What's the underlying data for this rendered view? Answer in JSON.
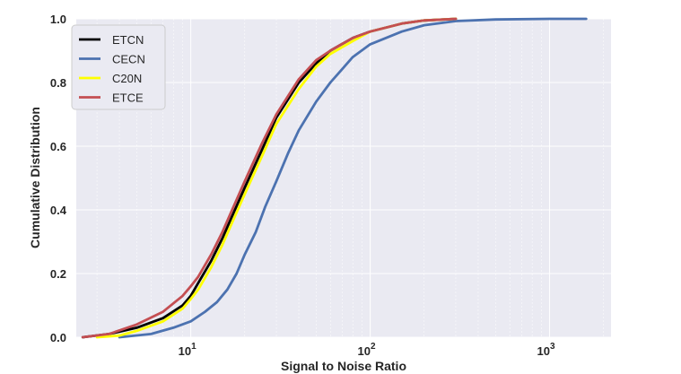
{
  "chart_data": {
    "type": "line",
    "title": "",
    "xlabel": "Signal to Noise Ratio",
    "ylabel": "Cumulative Distribution",
    "xscale": "log",
    "xlim": [
      2.3,
      2200
    ],
    "ylim": [
      0,
      1.0
    ],
    "grid": true,
    "legend_position": "top-left",
    "y_ticks": [
      "0.0",
      "0.2",
      "0.4",
      "0.6",
      "0.8",
      "1.0"
    ],
    "x_ticks": [
      {
        "value": 10,
        "base": "10",
        "exp": "1"
      },
      {
        "value": 100,
        "base": "10",
        "exp": "2"
      },
      {
        "value": 1000,
        "base": "10",
        "exp": "3"
      }
    ],
    "series": [
      {
        "name": "ETCN",
        "color": "#000000",
        "x": [
          2.5,
          3.5,
          5,
          7,
          9,
          10,
          11,
          13,
          15,
          17,
          20,
          25,
          30,
          40,
          50,
          60,
          80,
          100,
          150,
          200,
          300
        ],
        "y": [
          0.0,
          0.01,
          0.03,
          0.06,
          0.1,
          0.13,
          0.17,
          0.24,
          0.31,
          0.38,
          0.47,
          0.59,
          0.69,
          0.8,
          0.86,
          0.9,
          0.94,
          0.96,
          0.985,
          0.995,
          1.0
        ]
      },
      {
        "name": "CECN",
        "color": "#4c72b0",
        "x": [
          4,
          6,
          8,
          10,
          12,
          14,
          16,
          18,
          20,
          23,
          26,
          30,
          35,
          40,
          50,
          60,
          80,
          100,
          150,
          200,
          300,
          500,
          1000,
          1600
        ],
        "y": [
          0.0,
          0.01,
          0.03,
          0.05,
          0.08,
          0.11,
          0.15,
          0.2,
          0.26,
          0.33,
          0.41,
          0.49,
          0.58,
          0.65,
          0.74,
          0.8,
          0.88,
          0.92,
          0.96,
          0.98,
          0.993,
          0.998,
          1.0,
          1.0
        ]
      },
      {
        "name": "C20N",
        "color": "#ffff00",
        "x": [
          3,
          4,
          5,
          7,
          9,
          10,
          11,
          13,
          15,
          17,
          20,
          25,
          30,
          40,
          50,
          60,
          80,
          100,
          150,
          200,
          300
        ],
        "y": [
          0.0,
          0.005,
          0.02,
          0.05,
          0.09,
          0.12,
          0.15,
          0.22,
          0.29,
          0.36,
          0.45,
          0.57,
          0.67,
          0.78,
          0.85,
          0.89,
          0.93,
          0.96,
          0.985,
          0.995,
          1.0
        ]
      },
      {
        "name": "ETCE",
        "color": "#c44e52",
        "x": [
          2.5,
          3.5,
          5,
          7,
          9,
          10,
          11,
          13,
          15,
          17,
          20,
          25,
          30,
          40,
          50,
          60,
          80,
          100,
          150,
          200,
          300
        ],
        "y": [
          0.0,
          0.01,
          0.04,
          0.08,
          0.13,
          0.16,
          0.19,
          0.26,
          0.33,
          0.4,
          0.49,
          0.61,
          0.7,
          0.81,
          0.87,
          0.9,
          0.94,
          0.96,
          0.985,
          0.995,
          1.0
        ]
      }
    ]
  }
}
